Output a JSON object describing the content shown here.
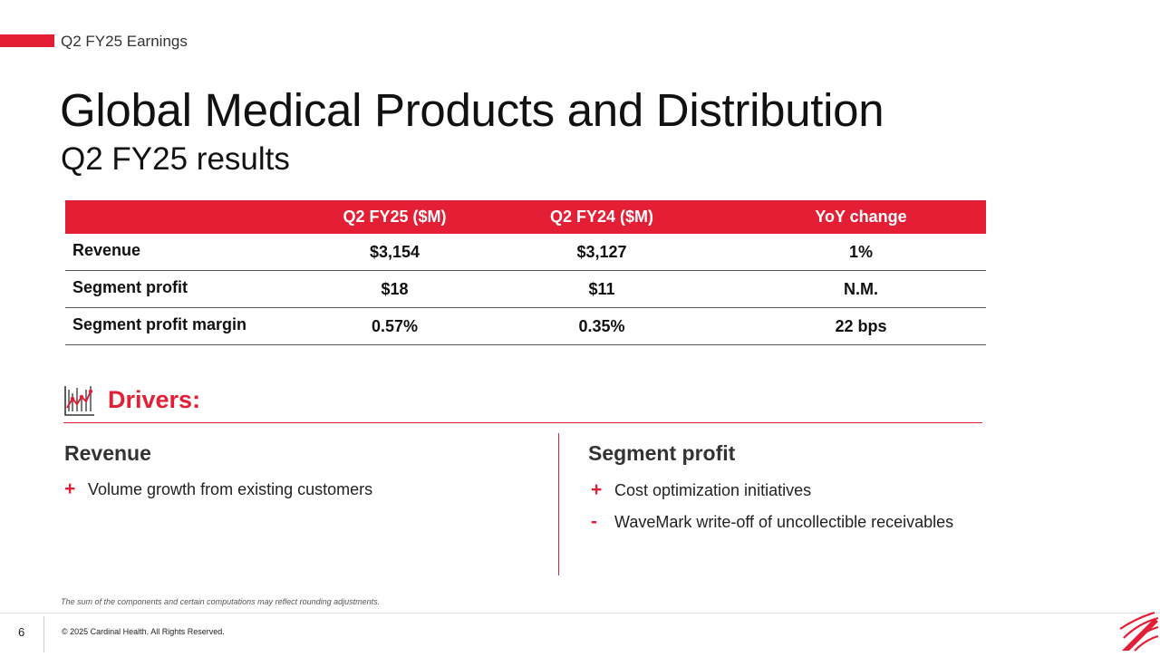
{
  "header": {
    "deck_label": "Q2 FY25 Earnings",
    "title": "Global Medical Products and Distribution",
    "subtitle": "Q2 FY25 results"
  },
  "table": {
    "columns": [
      "",
      "Q2 FY25 ($M)",
      "Q2 FY24 ($M)",
      "YoY change"
    ],
    "rows": [
      {
        "label": "Revenue",
        "q2fy25": "$3,154",
        "q2fy24": "$3,127",
        "yoy": "1%"
      },
      {
        "label": "Segment profit",
        "q2fy25": "$18",
        "q2fy24": "$11",
        "yoy": "N.M."
      },
      {
        "label": "Segment profit margin",
        "q2fy25": "0.57%",
        "q2fy24": "0.35%",
        "yoy": "22 bps"
      }
    ]
  },
  "drivers": {
    "title": "Drivers:",
    "revenue": {
      "heading": "Revenue",
      "items": [
        {
          "sign": "+",
          "text": "Volume growth from existing customers"
        }
      ]
    },
    "segment_profit": {
      "heading": "Segment profit",
      "items": [
        {
          "sign": "+",
          "text": "Cost optimization initiatives"
        },
        {
          "sign": "-",
          "text": "WaveMark write-off of uncollectible receivables"
        }
      ]
    }
  },
  "footer": {
    "footnote": "The sum of the components and certain computations may reflect rounding adjustments.",
    "page_number": "6",
    "copyright": "© 2025 Cardinal Health. All Rights Reserved."
  },
  "colors": {
    "accent": "#e41f35"
  }
}
